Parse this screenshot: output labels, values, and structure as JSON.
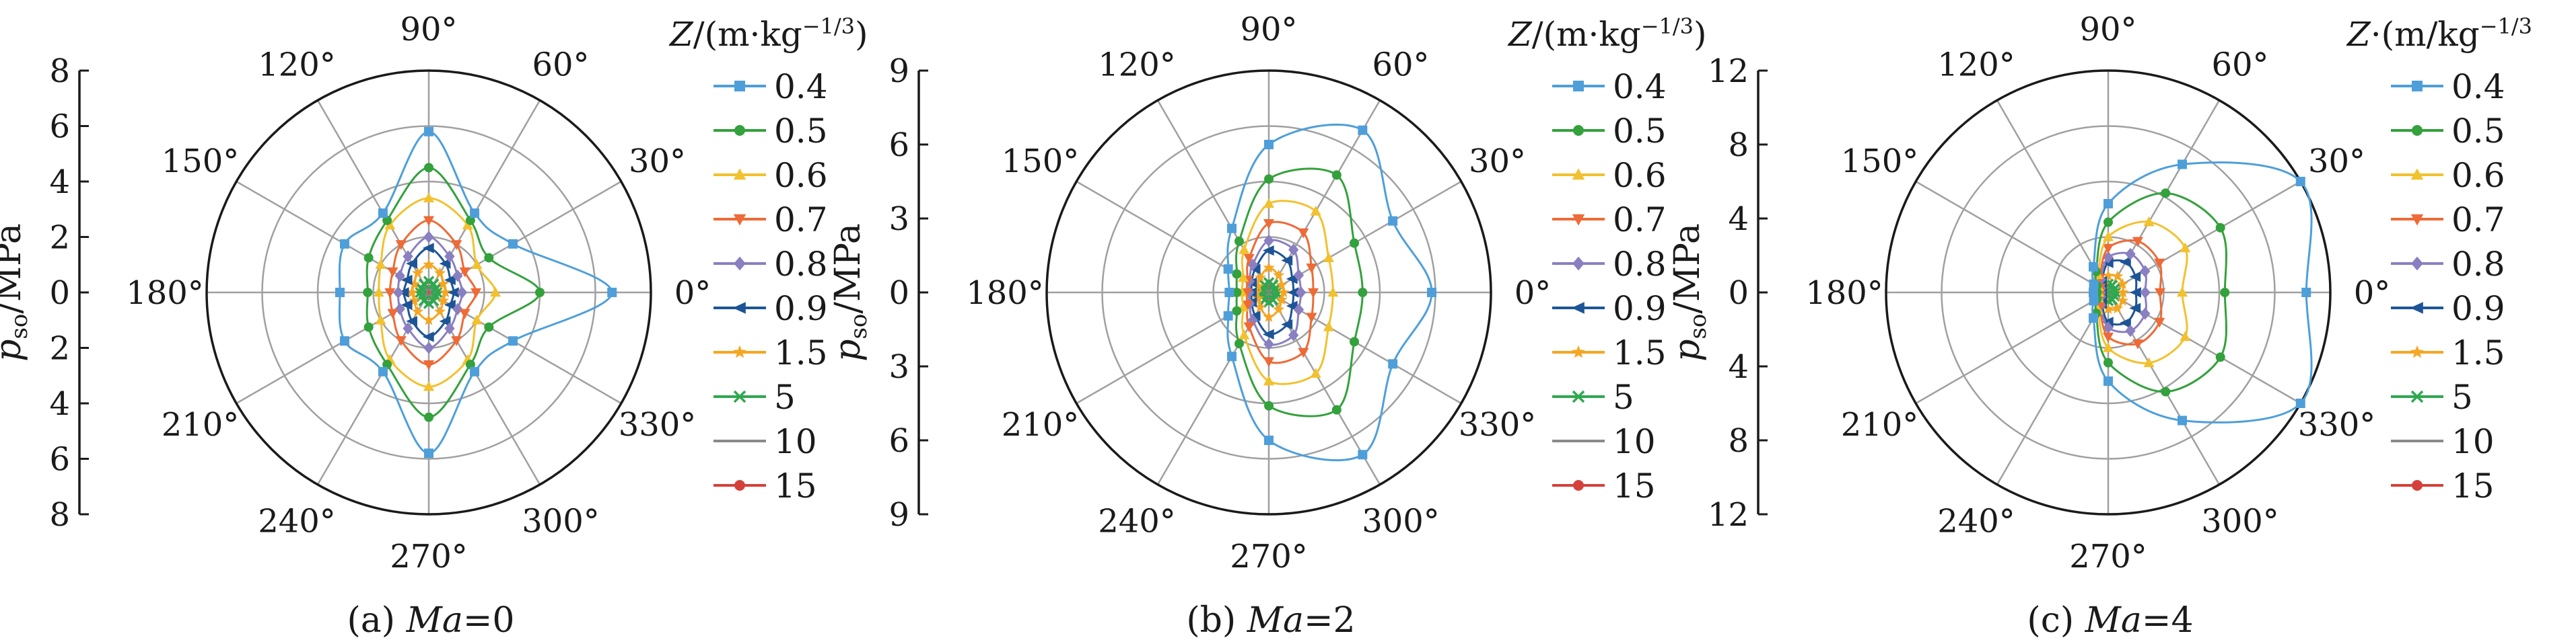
{
  "chart_data": [
    {
      "type": "polar",
      "panel": "(a)",
      "caption_prefix": "(a) ",
      "caption_var": "Ma",
      "caption_value": "=0",
      "ylabel_main": "p",
      "ylabel_sub": "so",
      "ylabel_unit": "/MPa",
      "radial_max": 8,
      "radial_ticks": [
        "8",
        "6",
        "4",
        "2",
        "0",
        "2",
        "4",
        "6",
        "8"
      ],
      "legend_title_var": "Z",
      "legend_title_unit": "/(m·kg",
      "legend_title_exp": "−1/3",
      "legend_title_close": ")",
      "angle_labels": [
        "0°",
        "30°",
        "60°",
        "90°",
        "120°",
        "150°",
        "180°",
        "210°",
        "240°",
        "270°",
        "300°",
        "330°"
      ],
      "series": [
        {
          "name": "0.4",
          "values": [
            6.6,
            3.5,
            3.3,
            5.8,
            3.3,
            3.5,
            3.2,
            3.5,
            3.3,
            5.8,
            3.3,
            3.5
          ]
        },
        {
          "name": "0.5",
          "values": [
            4.0,
            2.5,
            3.0,
            4.5,
            3.0,
            2.5,
            2.2,
            2.5,
            3.0,
            4.5,
            3.0,
            2.5
          ]
        },
        {
          "name": "0.6",
          "values": [
            2.4,
            2.0,
            2.8,
            3.4,
            2.8,
            2.0,
            1.8,
            2.0,
            2.8,
            3.4,
            2.8,
            2.0
          ]
        },
        {
          "name": "0.7",
          "values": [
            1.7,
            1.5,
            2.0,
            2.6,
            2.0,
            1.5,
            1.4,
            1.5,
            2.0,
            2.6,
            2.0,
            1.5
          ]
        },
        {
          "name": "0.8",
          "values": [
            1.2,
            1.2,
            1.5,
            2.0,
            1.5,
            1.2,
            1.1,
            1.2,
            1.5,
            2.0,
            1.5,
            1.2
          ]
        },
        {
          "name": "0.9",
          "values": [
            0.9,
            0.9,
            1.2,
            1.6,
            1.2,
            0.9,
            0.9,
            0.9,
            1.2,
            1.6,
            1.2,
            0.9
          ]
        },
        {
          "name": "1.5",
          "values": [
            0.6,
            0.6,
            0.8,
            1.0,
            0.8,
            0.6,
            0.6,
            0.6,
            0.8,
            1.0,
            0.8,
            0.6
          ]
        },
        {
          "name": "5",
          "values": [
            0.3,
            0.3,
            0.35,
            0.4,
            0.35,
            0.3,
            0.3,
            0.3,
            0.35,
            0.4,
            0.35,
            0.3
          ]
        },
        {
          "name": "10",
          "values": [
            0.2,
            0.2,
            0.2,
            0.2,
            0.2,
            0.2,
            0.2,
            0.2,
            0.2,
            0.2,
            0.2,
            0.2
          ]
        },
        {
          "name": "15",
          "values": [
            0.1,
            0.1,
            0.1,
            0.1,
            0.1,
            0.1,
            0.1,
            0.1,
            0.1,
            0.1,
            0.1,
            0.1
          ]
        }
      ]
    },
    {
      "type": "polar",
      "panel": "(b)",
      "caption_prefix": "(b) ",
      "caption_var": "Ma",
      "caption_value": "=2",
      "ylabel_main": "p",
      "ylabel_sub": "so",
      "ylabel_unit": "/MPa",
      "radial_max": 9,
      "radial_ticks": [
        "9",
        "6",
        "3",
        "0",
        "3",
        "6",
        "9"
      ],
      "legend_title_var": "Z",
      "legend_title_unit": "/(m·kg",
      "legend_title_exp": "−1/3",
      "legend_title_close": ")",
      "angle_labels": [
        "0°",
        "30°",
        "60°",
        "90°",
        "120°",
        "150°",
        "180°",
        "210°",
        "240°",
        "270°",
        "300°",
        "330°"
      ],
      "series": [
        {
          "name": "0.4",
          "values": [
            6.6,
            5.8,
            7.6,
            6.0,
            3.0,
            1.9,
            1.6,
            1.9,
            3.0,
            6.0,
            7.6,
            5.8
          ]
        },
        {
          "name": "0.5",
          "values": [
            3.8,
            4.0,
            5.5,
            4.6,
            2.4,
            1.5,
            1.3,
            1.5,
            2.4,
            4.6,
            5.5,
            4.0
          ]
        },
        {
          "name": "0.6",
          "values": [
            2.6,
            2.8,
            3.8,
            3.6,
            2.0,
            1.2,
            1.1,
            1.2,
            2.0,
            3.6,
            3.8,
            2.8
          ]
        },
        {
          "name": "0.7",
          "values": [
            1.8,
            2.0,
            2.8,
            2.8,
            1.6,
            1.0,
            0.9,
            1.0,
            1.6,
            2.8,
            2.8,
            2.0
          ]
        },
        {
          "name": "0.8",
          "values": [
            1.3,
            1.4,
            2.0,
            2.1,
            1.3,
            0.9,
            0.8,
            0.9,
            1.3,
            2.1,
            2.0,
            1.4
          ]
        },
        {
          "name": "0.9",
          "values": [
            1.0,
            1.1,
            1.5,
            1.7,
            1.1,
            0.8,
            0.7,
            0.8,
            1.1,
            1.7,
            1.5,
            1.1
          ]
        },
        {
          "name": "1.5",
          "values": [
            0.6,
            0.6,
            0.8,
            1.0,
            0.7,
            0.5,
            0.5,
            0.5,
            0.7,
            1.0,
            0.8,
            0.6
          ]
        },
        {
          "name": "5",
          "values": [
            0.3,
            0.3,
            0.35,
            0.4,
            0.35,
            0.3,
            0.3,
            0.3,
            0.35,
            0.4,
            0.35,
            0.3
          ]
        },
        {
          "name": "10",
          "values": [
            0.2,
            0.2,
            0.2,
            0.2,
            0.2,
            0.2,
            0.2,
            0.2,
            0.2,
            0.2,
            0.2,
            0.2
          ]
        },
        {
          "name": "15",
          "values": [
            0.1,
            0.1,
            0.1,
            0.1,
            0.1,
            0.1,
            0.1,
            0.1,
            0.1,
            0.1,
            0.1,
            0.1
          ]
        }
      ]
    },
    {
      "type": "polar",
      "panel": "(c)",
      "caption_prefix": "(c) ",
      "caption_var": "Ma",
      "caption_value": "=4",
      "ylabel_main": "p",
      "ylabel_sub": "so",
      "ylabel_unit": "/MPa",
      "radial_max": 12,
      "radial_ticks": [
        "12",
        "8",
        "4",
        "0",
        "4",
        "8",
        "12"
      ],
      "legend_title_var": "Z",
      "legend_title_unit": "·(m/kg",
      "legend_title_exp": "−1/3",
      "legend_title_close": "",
      "angle_labels": [
        "0°",
        "30°",
        "60°",
        "90°",
        "120°",
        "150°",
        "180°",
        "210°",
        "240°",
        "270°",
        "300°",
        "330°"
      ],
      "series": [
        {
          "name": "0.4",
          "values": [
            10.7,
            12.0,
            8.0,
            4.8,
            1.6,
            0.9,
            0.8,
            0.9,
            1.6,
            4.8,
            8.0,
            12.0
          ]
        },
        {
          "name": "0.5",
          "values": [
            6.3,
            7.0,
            6.2,
            3.8,
            1.3,
            0.7,
            0.6,
            0.7,
            1.3,
            3.8,
            6.2,
            7.0
          ]
        },
        {
          "name": "0.6",
          "values": [
            4.0,
            4.8,
            4.4,
            3.0,
            1.1,
            0.6,
            0.5,
            0.6,
            1.1,
            3.0,
            4.4,
            4.8
          ]
        },
        {
          "name": "0.7",
          "values": [
            2.8,
            3.2,
            3.2,
            2.4,
            0.9,
            0.5,
            0.45,
            0.5,
            0.9,
            2.4,
            3.2,
            3.2
          ]
        },
        {
          "name": "0.8",
          "values": [
            2.0,
            2.3,
            2.4,
            1.9,
            0.8,
            0.45,
            0.4,
            0.45,
            0.8,
            1.9,
            2.4,
            2.3
          ]
        },
        {
          "name": "0.9",
          "values": [
            1.5,
            1.7,
            1.9,
            1.6,
            0.7,
            0.4,
            0.35,
            0.4,
            0.7,
            1.6,
            1.9,
            1.7
          ]
        },
        {
          "name": "1.5",
          "values": [
            0.8,
            0.9,
            1.0,
            0.9,
            0.5,
            0.35,
            0.3,
            0.35,
            0.5,
            0.9,
            1.0,
            0.9
          ]
        },
        {
          "name": "5",
          "values": [
            0.4,
            0.4,
            0.45,
            0.45,
            0.35,
            0.3,
            0.3,
            0.3,
            0.35,
            0.45,
            0.45,
            0.4
          ]
        },
        {
          "name": "10",
          "values": [
            0.25,
            0.25,
            0.25,
            0.25,
            0.25,
            0.25,
            0.25,
            0.25,
            0.25,
            0.25,
            0.25,
            0.25
          ]
        },
        {
          "name": "15",
          "values": [
            0.15,
            0.15,
            0.15,
            0.15,
            0.15,
            0.15,
            0.15,
            0.15,
            0.15,
            0.15,
            0.15,
            0.15
          ]
        }
      ]
    }
  ],
  "legend_styles": [
    {
      "name": "0.4",
      "color": "#4e9fd9",
      "marker": "square"
    },
    {
      "name": "0.5",
      "color": "#33a13c",
      "marker": "circle"
    },
    {
      "name": "0.6",
      "color": "#f2c12e",
      "marker": "triangle"
    },
    {
      "name": "0.7",
      "color": "#ee6a36",
      "marker": "triangle-down"
    },
    {
      "name": "0.8",
      "color": "#8a7fc1",
      "marker": "diamond"
    },
    {
      "name": "0.9",
      "color": "#1d5496",
      "marker": "arrow-left"
    },
    {
      "name": "1.5",
      "color": "#f5a623",
      "marker": "star"
    },
    {
      "name": "5",
      "color": "#2fa84f",
      "marker": "x"
    },
    {
      "name": "10",
      "color": "#8a8a8a",
      "marker": "dash"
    },
    {
      "name": "15",
      "color": "#d6403a",
      "marker": "dot"
    }
  ]
}
